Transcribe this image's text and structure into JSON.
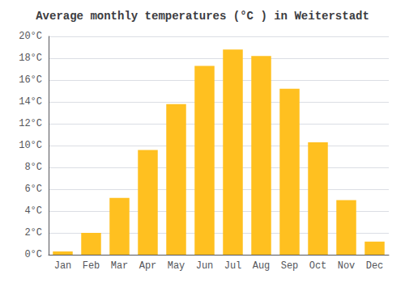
{
  "chart_data": {
    "type": "bar",
    "title": "Average monthly temperatures (°C ) in Weiterstadt",
    "categories": [
      "Jan",
      "Feb",
      "Mar",
      "Apr",
      "May",
      "Jun",
      "Jul",
      "Aug",
      "Sep",
      "Oct",
      "Nov",
      "Dec"
    ],
    "values": [
      0.3,
      2.0,
      5.2,
      9.6,
      13.8,
      17.3,
      18.8,
      18.2,
      15.2,
      10.3,
      5.0,
      1.2
    ],
    "color": "#FFC020",
    "ylim": [
      0,
      20
    ],
    "yticks": [
      {
        "value": 0,
        "label": "0°C"
      },
      {
        "value": 2,
        "label": "2°C"
      },
      {
        "value": 4,
        "label": "4°C"
      },
      {
        "value": 6,
        "label": "6°C"
      },
      {
        "value": 8,
        "label": "8°C"
      },
      {
        "value": 10,
        "label": "10°C"
      },
      {
        "value": 12,
        "label": "12°C"
      },
      {
        "value": 14,
        "label": "14°C"
      },
      {
        "value": 16,
        "label": "16°C"
      },
      {
        "value": 18,
        "label": "18°C"
      },
      {
        "value": 20,
        "label": "20°C"
      }
    ],
    "grid": true
  }
}
